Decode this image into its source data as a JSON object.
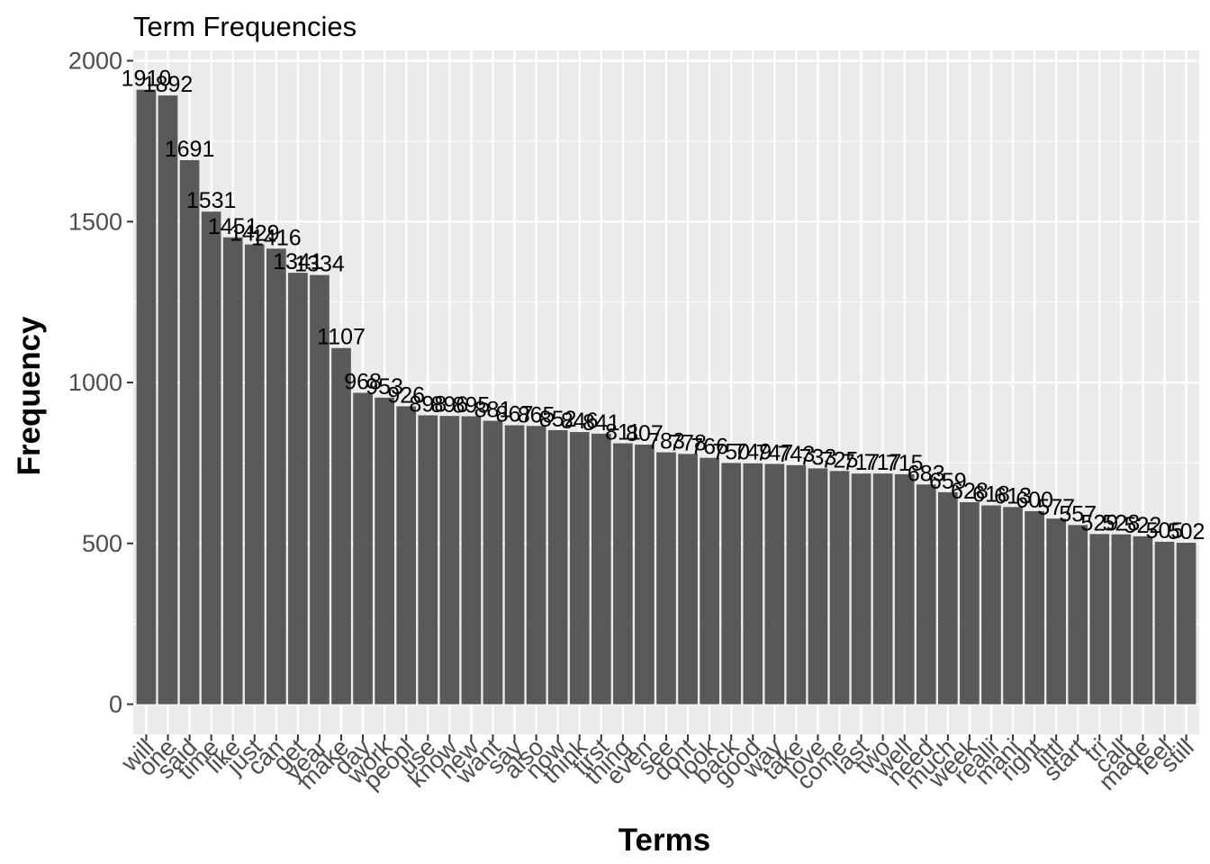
{
  "chart_data": {
    "type": "bar",
    "title": "Term Frequencies",
    "xlabel": "Terms",
    "ylabel": "Frequency",
    "ylim": [
      0,
      2000
    ],
    "yticks": [
      0,
      500,
      1000,
      1500,
      2000
    ],
    "grid": true,
    "bar_color": "#595959",
    "panel_color": "#ebebeb",
    "categories": [
      "will",
      "one",
      "said",
      "time",
      "like",
      "just",
      "can",
      "get",
      "year",
      "make",
      "day",
      "work",
      "peopl",
      "use",
      "know",
      "new",
      "want",
      "say",
      "also",
      "now",
      "think",
      "first",
      "thing",
      "even",
      "see",
      "dont",
      "look",
      "back",
      "good",
      "way",
      "take",
      "love",
      "come",
      "last",
      "two",
      "well",
      "need",
      "much",
      "week",
      "realli",
      "mani",
      "right",
      "littl",
      "start",
      "tri",
      "call",
      "made",
      "feel",
      "still"
    ],
    "values": [
      1910,
      1892,
      1691,
      1531,
      1451,
      1429,
      1416,
      1341,
      1334,
      1107,
      968,
      953,
      926,
      898,
      896,
      895,
      881,
      867,
      865,
      852,
      846,
      841,
      811,
      807,
      783,
      778,
      766,
      750,
      749,
      747,
      743,
      733,
      725,
      717,
      717,
      715,
      683,
      659,
      628,
      618,
      613,
      600,
      577,
      557,
      529,
      528,
      522,
      505,
      502
    ],
    "labels": [
      "1910",
      "1892",
      "1691",
      "1531",
      "1451",
      "1429",
      "1416",
      "1341",
      "1334",
      "1107",
      "968",
      "953",
      "926",
      "898",
      "896",
      "895",
      "881",
      "867",
      "865",
      "852",
      "846",
      "841",
      "811",
      "807",
      "783",
      "778",
      "766",
      "750",
      "749",
      "747",
      "743",
      "733",
      "725",
      "717",
      "717",
      "715",
      "683",
      "659",
      "628",
      "618",
      "613",
      "600",
      "577",
      "557",
      "529",
      "528",
      "522",
      "505",
      "502"
    ]
  }
}
